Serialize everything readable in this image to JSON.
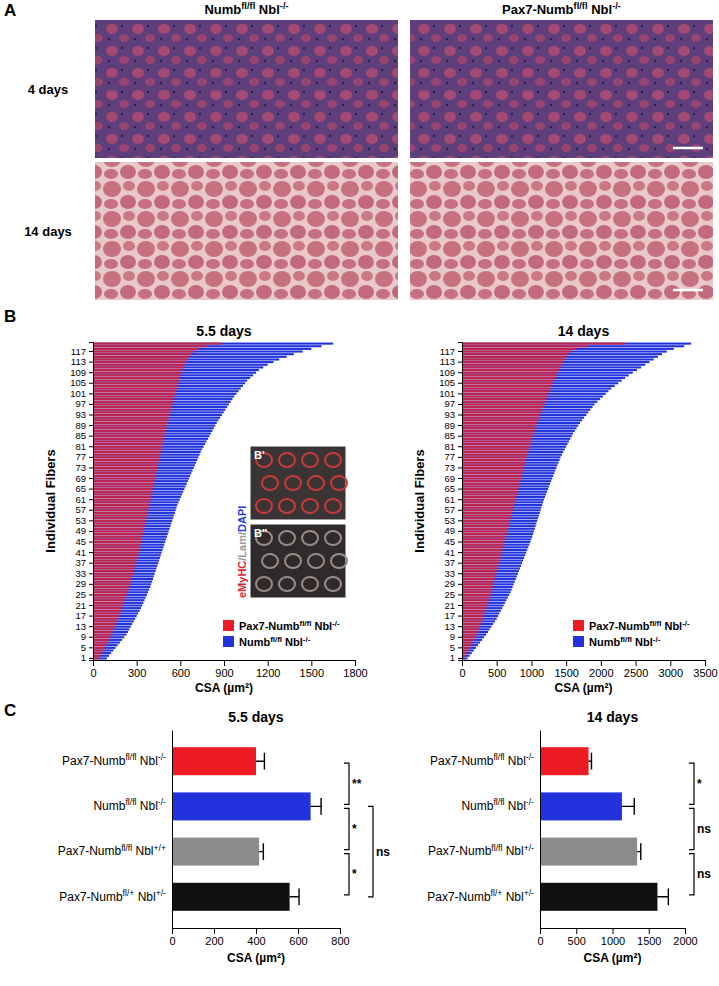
{
  "panel_labels": [
    "A",
    "B",
    "C"
  ],
  "images": {
    "columns": [
      "Numbfl/fl Nbl-/-",
      "Pax7-Numbfl/fl Nbl-/-"
    ],
    "rows": [
      "4 days",
      "14 days"
    ]
  },
  "inset": {
    "labels": [
      "B'",
      "B''"
    ],
    "stain": [
      "eMyHC",
      "/Lam/",
      "DAPI"
    ],
    "stain_colors": [
      "#e8202a",
      "#9a9a9a",
      "#2b3bd6"
    ]
  },
  "chart_data": [
    {
      "type": "bar",
      "orientation": "horizontal",
      "stacked": false,
      "grid": false,
      "legend": "lower right",
      "title": "5.5 days",
      "x_label": "CSA (µm²)",
      "y_label": "Individual Fibers",
      "xlim": [
        0,
        1800
      ],
      "xticks": [
        0,
        300,
        600,
        900,
        1200,
        1500,
        1800
      ],
      "categories": [
        "1",
        null,
        null,
        null,
        "5",
        null,
        null,
        null,
        "9",
        null,
        null,
        null,
        "13",
        null,
        null,
        null,
        "17",
        null,
        null,
        null,
        "21",
        null,
        null,
        null,
        "25",
        null,
        null,
        null,
        "29",
        null,
        null,
        null,
        "33",
        null,
        null,
        null,
        "37",
        null,
        null,
        null,
        "41",
        null,
        null,
        null,
        "45",
        null,
        null,
        null,
        "49",
        null,
        null,
        null,
        "53",
        null,
        null,
        null,
        "57",
        null,
        null,
        null,
        "61",
        null,
        null,
        null,
        "65",
        null,
        null,
        null,
        "69",
        null,
        null,
        null,
        "73",
        null,
        null,
        null,
        "77",
        null,
        null,
        null,
        "81",
        null,
        null,
        null,
        "85",
        null,
        null,
        null,
        "89",
        null,
        null,
        null,
        "93",
        null,
        null,
        null,
        "97",
        null,
        null,
        null,
        "101",
        null,
        null,
        null,
        "105",
        null,
        null,
        null,
        "109",
        null,
        null,
        null,
        "113",
        null,
        null,
        null,
        "117",
        null,
        null,
        null
      ],
      "series": [
        {
          "name": "Pax7-Numbfl/fl Nbl-/-",
          "color": "#ed1c24",
          "values": [
            40,
            50,
            60,
            70,
            80,
            90,
            100,
            110,
            118,
            126,
            134,
            142,
            150,
            158,
            165,
            172,
            179,
            186,
            193,
            200,
            206,
            212,
            218,
            224,
            230,
            236,
            242,
            248,
            254,
            260,
            265,
            270,
            275,
            280,
            285,
            290,
            295,
            300,
            305,
            310,
            314,
            318,
            322,
            326,
            330,
            334,
            338,
            342,
            346,
            350,
            354,
            358,
            362,
            366,
            370,
            374,
            378,
            382,
            386,
            390,
            394,
            398,
            402,
            406,
            410,
            414,
            418,
            422,
            426,
            430,
            434,
            438,
            442,
            446,
            450,
            454,
            458,
            462,
            466,
            470,
            474,
            478,
            482,
            486,
            490,
            494,
            498,
            502,
            506,
            510,
            515,
            520,
            525,
            530,
            535,
            540,
            545,
            550,
            555,
            560,
            565,
            570,
            575,
            580,
            585,
            590,
            595,
            600,
            606,
            612,
            620,
            630,
            640,
            650,
            662,
            676,
            695,
            725,
            780,
            880
          ]
        },
        {
          "name": "Numbfl/fl Nbl-/-",
          "color": "#2233dd",
          "values": [
            95,
            110,
            125,
            140,
            155,
            170,
            185,
            200,
            215,
            230,
            240,
            250,
            260,
            270,
            280,
            290,
            300,
            310,
            320,
            330,
            338,
            346,
            354,
            362,
            370,
            378,
            386,
            394,
            400,
            406,
            412,
            418,
            424,
            430,
            436,
            442,
            448,
            454,
            460,
            466,
            472,
            478,
            484,
            490,
            496,
            502,
            508,
            514,
            520,
            526,
            532,
            538,
            544,
            550,
            556,
            562,
            568,
            574,
            580,
            588,
            596,
            604,
            612,
            620,
            628,
            636,
            644,
            652,
            660,
            668,
            676,
            684,
            692,
            700,
            708,
            716,
            724,
            732,
            740,
            750,
            760,
            770,
            780,
            790,
            800,
            810,
            820,
            830,
            840,
            850,
            862,
            874,
            886,
            898,
            910,
            922,
            934,
            946,
            958,
            970,
            985,
            1000,
            1015,
            1030,
            1045,
            1060,
            1080,
            1100,
            1120,
            1140,
            1170,
            1200,
            1240,
            1280,
            1330,
            1380,
            1440,
            1500,
            1570,
            1650
          ]
        }
      ]
    },
    {
      "type": "bar",
      "orientation": "horizontal",
      "stacked": false,
      "grid": false,
      "legend": "lower right",
      "title": "14 days",
      "x_label": "CSA (µm²)",
      "y_label": "Individual Fibers",
      "xlim": [
        0,
        3500
      ],
      "xticks": [
        0,
        500,
        1000,
        1500,
        2000,
        2500,
        3000,
        3500
      ],
      "categories": [
        "1",
        null,
        null,
        null,
        "5",
        null,
        null,
        null,
        "9",
        null,
        null,
        null,
        "13",
        null,
        null,
        null,
        "17",
        null,
        null,
        null,
        "21",
        null,
        null,
        null,
        "25",
        null,
        null,
        null,
        "29",
        null,
        null,
        null,
        "33",
        null,
        null,
        null,
        "37",
        null,
        null,
        null,
        "41",
        null,
        null,
        null,
        "45",
        null,
        null,
        null,
        "49",
        null,
        null,
        null,
        "53",
        null,
        null,
        null,
        "57",
        null,
        null,
        null,
        "61",
        null,
        null,
        null,
        "65",
        null,
        null,
        null,
        "69",
        null,
        null,
        null,
        "73",
        null,
        null,
        null,
        "77",
        null,
        null,
        null,
        "81",
        null,
        null,
        null,
        "85",
        null,
        null,
        null,
        "89",
        null,
        null,
        null,
        "93",
        null,
        null,
        null,
        "97",
        null,
        null,
        null,
        "101",
        null,
        null,
        null,
        "105",
        null,
        null,
        null,
        "109",
        null,
        null,
        null,
        "113",
        null,
        null,
        null,
        "117",
        null,
        null,
        null
      ],
      "series": [
        {
          "name": "Pax7-Numbfl/fl Nbl-/-",
          "color": "#ed1c24",
          "values": [
            30,
            50,
            70,
            90,
            110,
            130,
            150,
            170,
            190,
            210,
            225,
            240,
            255,
            270,
            285,
            300,
            312,
            324,
            336,
            348,
            360,
            372,
            384,
            396,
            408,
            420,
            430,
            440,
            450,
            460,
            470,
            480,
            490,
            500,
            510,
            520,
            530,
            540,
            550,
            560,
            570,
            580,
            590,
            600,
            610,
            620,
            630,
            640,
            650,
            660,
            670,
            680,
            690,
            700,
            710,
            720,
            730,
            740,
            750,
            760,
            770,
            780,
            790,
            800,
            810,
            820,
            830,
            840,
            850,
            860,
            870,
            880,
            890,
            900,
            910,
            920,
            930,
            940,
            950,
            960,
            972,
            984,
            996,
            1008,
            1020,
            1032,
            1044,
            1056,
            1068,
            1080,
            1095,
            1110,
            1125,
            1140,
            1155,
            1170,
            1185,
            1200,
            1215,
            1230,
            1245,
            1260,
            1275,
            1290,
            1305,
            1320,
            1340,
            1360,
            1380,
            1400,
            1420,
            1440,
            1460,
            1480,
            1500,
            1530,
            1570,
            1650,
            1800,
            2350
          ]
        },
        {
          "name": "Numbfl/fl Nbl-/-",
          "color": "#2233dd",
          "values": [
            80,
            110,
            140,
            170,
            200,
            230,
            260,
            290,
            320,
            350,
            375,
            400,
            425,
            450,
            475,
            500,
            520,
            540,
            560,
            580,
            600,
            620,
            640,
            660,
            680,
            700,
            715,
            730,
            745,
            760,
            775,
            790,
            805,
            820,
            835,
            850,
            865,
            880,
            895,
            910,
            925,
            940,
            955,
            970,
            985,
            1000,
            1012,
            1024,
            1036,
            1048,
            1060,
            1072,
            1084,
            1096,
            1108,
            1120,
            1132,
            1144,
            1156,
            1168,
            1180,
            1195,
            1210,
            1225,
            1240,
            1255,
            1270,
            1285,
            1300,
            1315,
            1330,
            1345,
            1360,
            1375,
            1390,
            1405,
            1420,
            1440,
            1460,
            1480,
            1500,
            1520,
            1540,
            1560,
            1580,
            1600,
            1625,
            1650,
            1675,
            1700,
            1730,
            1760,
            1790,
            1820,
            1850,
            1880,
            1910,
            1950,
            1990,
            2030,
            2070,
            2110,
            2150,
            2200,
            2250,
            2300,
            2350,
            2400,
            2460,
            2520,
            2580,
            2640,
            2700,
            2760,
            2820,
            2880,
            2950,
            3050,
            3200,
            3300
          ]
        }
      ]
    },
    {
      "type": "bar",
      "orientation": "horizontal",
      "grid": false,
      "title": "5.5 days",
      "x_label": "CSA (µm²)",
      "xlim": [
        0,
        800
      ],
      "xticks": [
        0,
        200,
        400,
        600,
        800
      ],
      "categories": [
        "Pax7-Numbfl/fl Nbl-/-",
        "Numbfl/fl Nbl-/-",
        "Pax7-Numbfl/fl Nbl+/+",
        "Pax7-Numbfl/+ Nbl+/-"
      ],
      "values": [
        400,
        660,
        415,
        560
      ],
      "errors": [
        40,
        50,
        20,
        45
      ],
      "colors": [
        "#ed1c24",
        "#2233dd",
        "#8c8c8c",
        "#111111"
      ],
      "annotations": [
        {
          "from": 0,
          "to": 1,
          "label": "**"
        },
        {
          "from": 1,
          "to": 2,
          "label": "*"
        },
        {
          "from": 2,
          "to": 3,
          "label": "*"
        },
        {
          "from": 1,
          "to": 3,
          "label": "ns"
        }
      ]
    },
    {
      "type": "bar",
      "orientation": "horizontal",
      "grid": false,
      "title": "14 days",
      "x_label": "CSA (µm²)",
      "xlim": [
        0,
        2000
      ],
      "xticks": [
        0,
        500,
        1000,
        1500,
        2000
      ],
      "categories": [
        "Pax7-Numbfl/fl Nbl-/-",
        "Numbfl/fl Nbl-/-",
        "Pax7-Numbfl/fl Nbl+/-",
        "Pax7-Numbfl/+ Nbl+/-"
      ],
      "values": [
        670,
        1130,
        1340,
        1620
      ],
      "errors": [
        40,
        170,
        50,
        150
      ],
      "colors": [
        "#ed1c24",
        "#2233dd",
        "#8c8c8c",
        "#111111"
      ],
      "annotations": [
        {
          "from": 0,
          "to": 1,
          "label": "*"
        },
        {
          "from": 1,
          "to": 2,
          "label": "ns"
        },
        {
          "from": 2,
          "to": 3,
          "label": "ns"
        }
      ]
    }
  ]
}
